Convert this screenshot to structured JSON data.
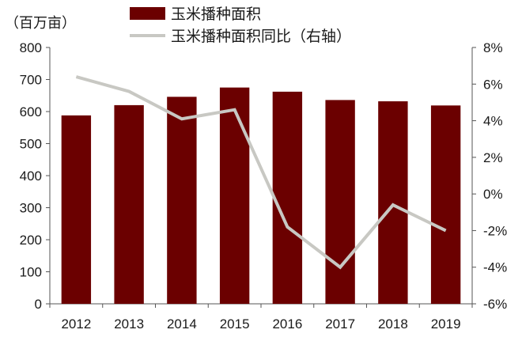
{
  "chart_data": {
    "type": "bar",
    "categories": [
      "2012",
      "2013",
      "2014",
      "2015",
      "2016",
      "2017",
      "2018",
      "2019"
    ],
    "series": [
      {
        "name": "玉米播种面积",
        "kind": "bar",
        "axis": "left",
        "color": "#6b0000",
        "values": [
          588,
          620,
          646,
          675,
          662,
          636,
          632,
          619
        ]
      },
      {
        "name": "玉米播种面积同比（右轴）",
        "kind": "line",
        "axis": "right",
        "color": "#c8c8c3",
        "values": [
          6.4,
          5.6,
          4.1,
          4.6,
          -1.8,
          -4.0,
          -0.6,
          -2.0
        ]
      }
    ],
    "left_axis": {
      "unit_label": "（百万亩）",
      "ylim": [
        0,
        800
      ],
      "ticks": [
        "0",
        "100",
        "200",
        "300",
        "400",
        "500",
        "600",
        "700",
        "800"
      ]
    },
    "right_axis": {
      "ylim": [
        -6,
        8
      ],
      "ticks": [
        "-6%",
        "-4%",
        "-2%",
        "0%",
        "2%",
        "4%",
        "6%",
        "8%"
      ]
    },
    "legend_position": "top-center",
    "grid": false
  }
}
